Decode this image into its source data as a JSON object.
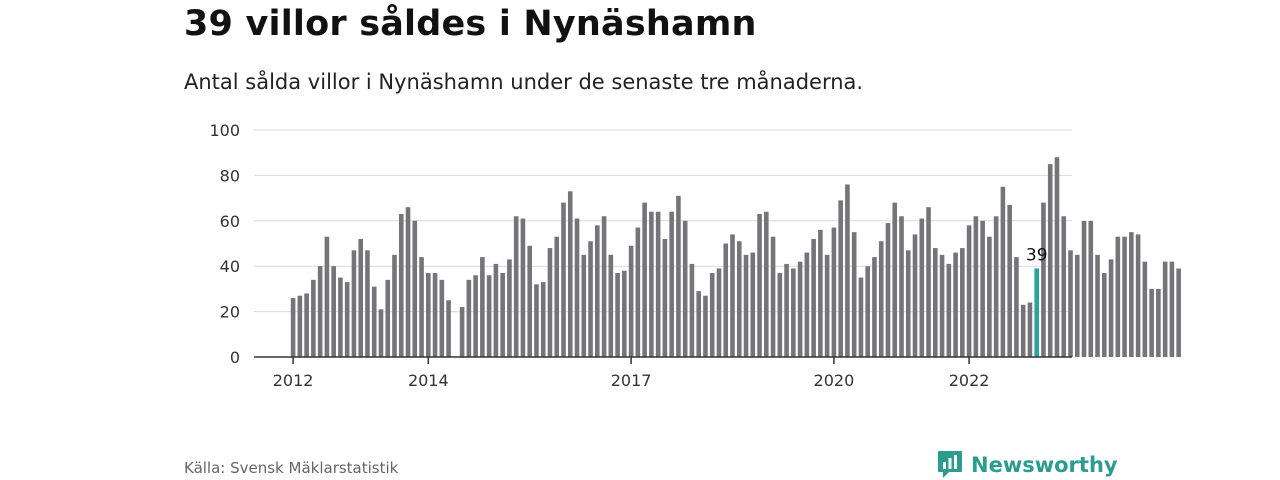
{
  "header": {
    "title": "39 villor såldes i Nynäshamn",
    "subtitle": "Antal sålda villor i Nynäshamn under de senaste tre månaderna."
  },
  "footer": {
    "source": "Källa: Svensk Mäklarstatistik",
    "brand": "Newsworthy",
    "brand_icon": "newsworthy-logo-icon"
  },
  "colors": {
    "bar": "#75747a",
    "highlight": "#26a69a",
    "grid": "#d9d9d9",
    "axis": "#333333",
    "brand": "#2a9d8f"
  },
  "chart_data": {
    "type": "bar",
    "x_tick_labels": [
      "2012",
      "2014",
      "2017",
      "2020",
      "2022"
    ],
    "x_tick_at_bar": [
      0,
      20,
      50,
      80,
      100
    ],
    "y_ticks": [
      0,
      20,
      40,
      60,
      80,
      100
    ],
    "ylim": [
      0,
      100
    ],
    "grid": true,
    "highlight_label": "39",
    "highlight_index": 110,
    "values": [
      26,
      27,
      28,
      34,
      40,
      53,
      40,
      35,
      33,
      47,
      52,
      47,
      31,
      21,
      34,
      45,
      63,
      66,
      60,
      44,
      37,
      37,
      34,
      25,
      0,
      22,
      34,
      36,
      44,
      36,
      41,
      37,
      43,
      62,
      61,
      49,
      32,
      33,
      48,
      53,
      68,
      73,
      61,
      45,
      51,
      58,
      62,
      45,
      37,
      38,
      49,
      57,
      68,
      64,
      64,
      52,
      64,
      71,
      60,
      41,
      29,
      27,
      37,
      39,
      50,
      54,
      51,
      45,
      46,
      63,
      64,
      53,
      37,
      41,
      39,
      42,
      46,
      52,
      56,
      45,
      57,
      69,
      76,
      55,
      35,
      40,
      44,
      51,
      59,
      68,
      62,
      47,
      54,
      61,
      66,
      48,
      45,
      41,
      46,
      48,
      58,
      62,
      60,
      53,
      62,
      75,
      67,
      44,
      23,
      24,
      39,
      68,
      85,
      88,
      62,
      47,
      45,
      60,
      60,
      45,
      37,
      43,
      53,
      53,
      55,
      54,
      42,
      30,
      30,
      42,
      42,
      39
    ]
  }
}
